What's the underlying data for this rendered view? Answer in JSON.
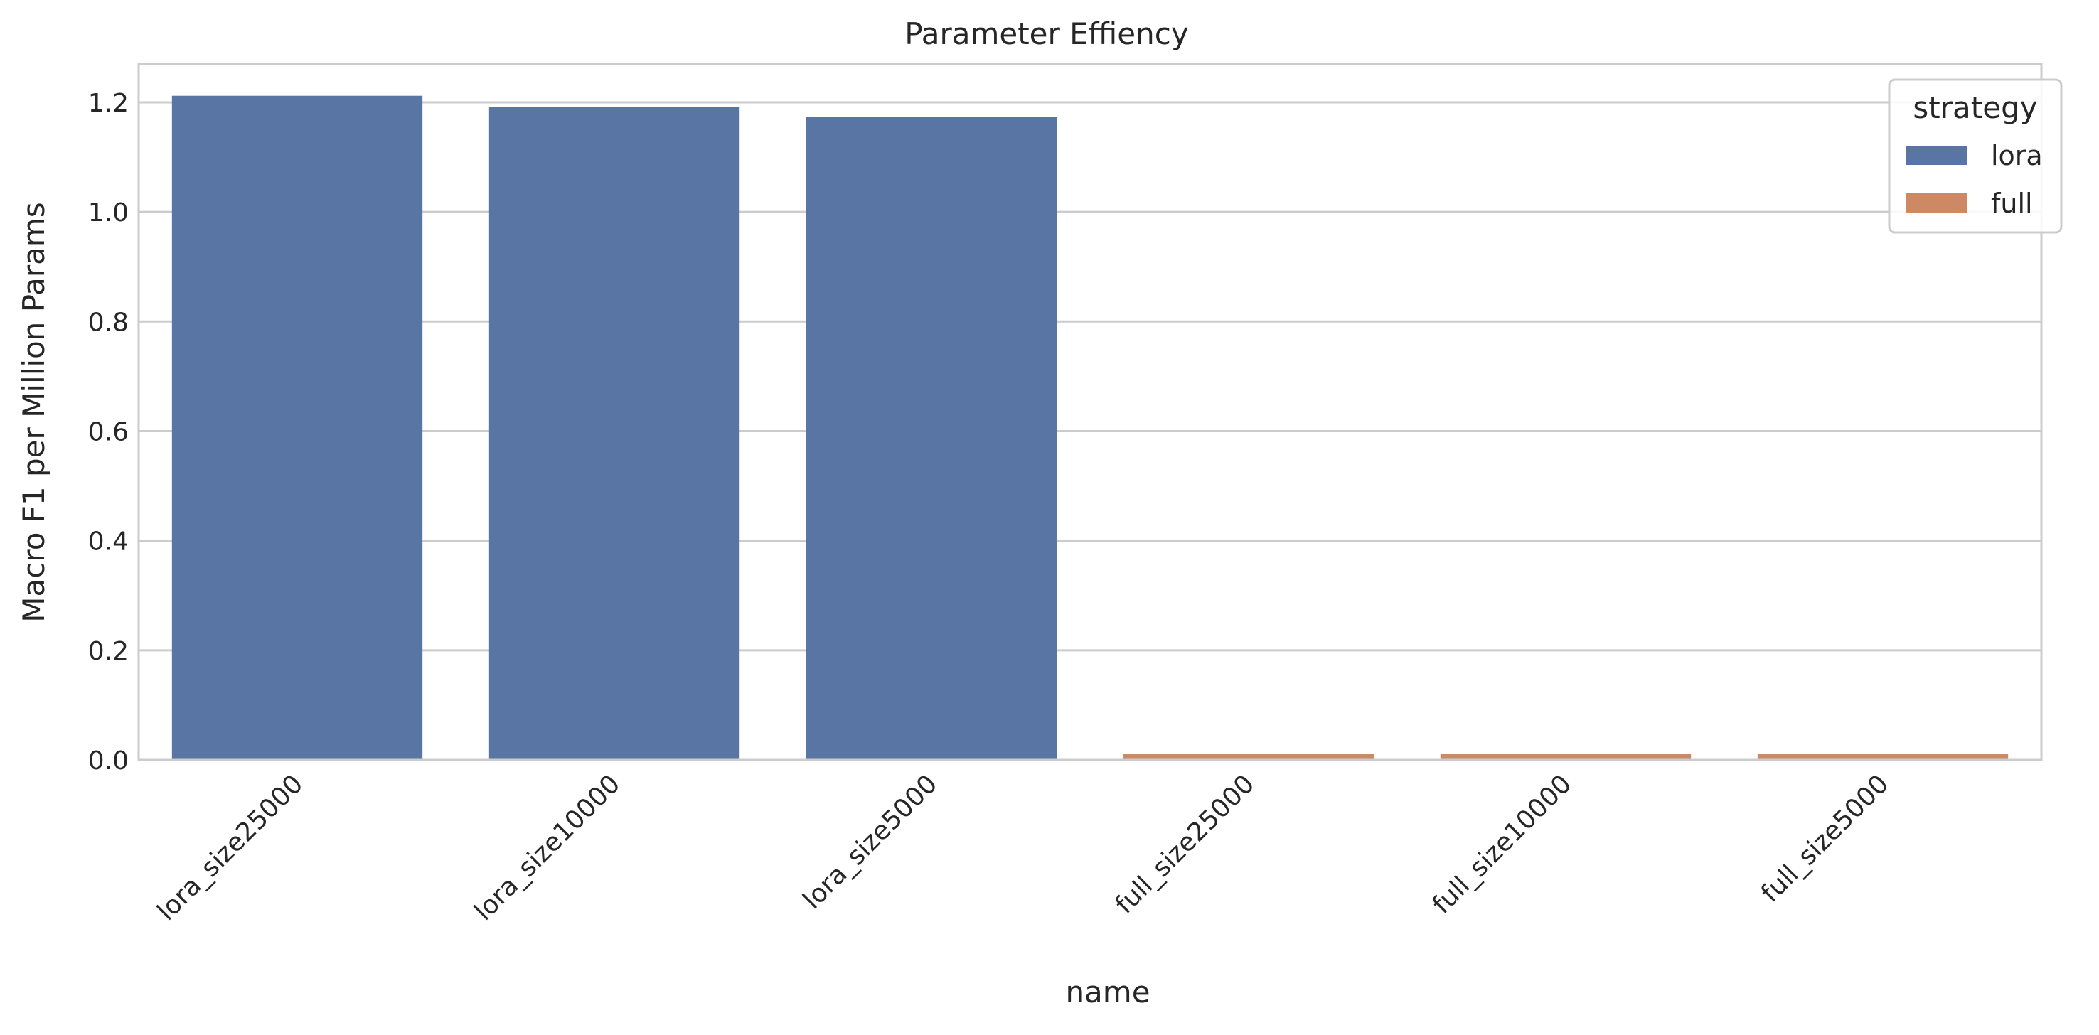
{
  "chart_data": {
    "type": "bar",
    "title": "Parameter Effiency",
    "xlabel": "name",
    "ylabel": "Macro F1 per Million Params",
    "categories": [
      "lora_size25000",
      "lora_size10000",
      "lora_size5000",
      "full_size25000",
      "full_size10000",
      "full_size5000"
    ],
    "values": [
      1.212,
      1.192,
      1.173,
      0.011,
      0.011,
      0.011
    ],
    "strategy": [
      "lora",
      "lora",
      "lora",
      "full",
      "full",
      "full"
    ],
    "ylim": [
      0,
      1.27
    ],
    "yticks": [
      0.0,
      0.2,
      0.4,
      0.6,
      0.8,
      1.0,
      1.2
    ],
    "ytick_labels": [
      "0.0",
      "0.2",
      "0.4",
      "0.6",
      "0.8",
      "1.0",
      "1.2"
    ],
    "grid": "horizontal",
    "legend": {
      "title": "strategy",
      "placement": "top-right",
      "entries": [
        {
          "label": "lora",
          "color": "#5875a4"
        },
        {
          "label": "full",
          "color": "#cc8963"
        }
      ]
    },
    "colors": {
      "lora": "#5875a4",
      "full": "#cc8963"
    }
  }
}
